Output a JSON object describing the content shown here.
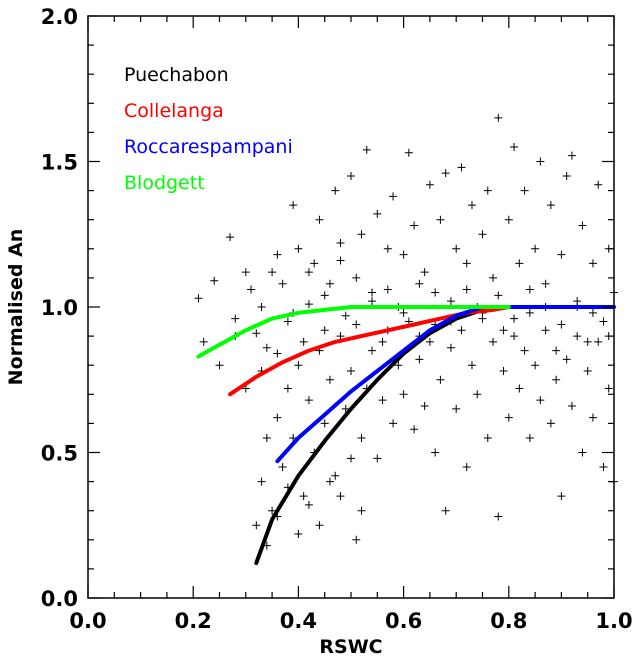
{
  "chart_data": {
    "type": "scatter",
    "xlabel": "RSWC",
    "ylabel": "Normalised An",
    "xlim": [
      0.0,
      1.0
    ],
    "ylim": [
      0.0,
      2.0
    ],
    "xticks": [
      "0.0",
      "0.2",
      "0.4",
      "0.6",
      "0.8",
      "1.0"
    ],
    "yticks": [
      "0.0",
      "0.5",
      "1.0",
      "1.5",
      "2.0"
    ],
    "grid": false,
    "legend_placement": "top-left",
    "scatter_points": [
      [
        0.21,
        1.03
      ],
      [
        0.24,
        1.09
      ],
      [
        0.27,
        1.24
      ],
      [
        0.28,
        0.96
      ],
      [
        0.3,
        1.12
      ],
      [
        0.31,
        1.06
      ],
      [
        0.32,
        0.91
      ],
      [
        0.33,
        1.0
      ],
      [
        0.34,
        0.86
      ],
      [
        0.35,
        1.12
      ],
      [
        0.36,
        1.18
      ],
      [
        0.37,
        1.08
      ],
      [
        0.38,
        0.95
      ],
      [
        0.39,
        1.35
      ],
      [
        0.4,
        1.2
      ],
      [
        0.41,
        0.88
      ],
      [
        0.42,
        1.01
      ],
      [
        0.43,
        1.15
      ],
      [
        0.44,
        1.3
      ],
      [
        0.45,
        0.92
      ],
      [
        0.46,
        1.08
      ],
      [
        0.47,
        1.4
      ],
      [
        0.48,
        1.22
      ],
      [
        0.49,
        0.97
      ],
      [
        0.5,
        1.45
      ],
      [
        0.51,
        1.1
      ],
      [
        0.52,
        1.25
      ],
      [
        0.53,
        1.54
      ],
      [
        0.54,
        1.05
      ],
      [
        0.55,
        1.32
      ],
      [
        0.56,
        0.88
      ],
      [
        0.57,
        1.2
      ],
      [
        0.58,
        1.38
      ],
      [
        0.59,
        1.0
      ],
      [
        0.6,
        1.18
      ],
      [
        0.61,
        1.53
      ],
      [
        0.62,
        1.28
      ],
      [
        0.63,
        0.9
      ],
      [
        0.64,
        1.12
      ],
      [
        0.65,
        1.42
      ],
      [
        0.66,
        1.05
      ],
      [
        0.67,
        1.3
      ],
      [
        0.68,
        1.46
      ],
      [
        0.69,
        0.95
      ],
      [
        0.7,
        1.2
      ],
      [
        0.71,
        1.48
      ],
      [
        0.72,
        1.15
      ],
      [
        0.73,
        1.35
      ],
      [
        0.74,
        1.0
      ],
      [
        0.75,
        1.25
      ],
      [
        0.76,
        1.4
      ],
      [
        0.77,
        1.1
      ],
      [
        0.78,
        1.65
      ],
      [
        0.79,
        0.92
      ],
      [
        0.8,
        1.3
      ],
      [
        0.81,
        1.55
      ],
      [
        0.82,
        1.15
      ],
      [
        0.83,
        1.4
      ],
      [
        0.84,
        0.98
      ],
      [
        0.85,
        1.2
      ],
      [
        0.86,
        1.5
      ],
      [
        0.87,
        1.08
      ],
      [
        0.88,
        1.35
      ],
      [
        0.89,
        0.85
      ],
      [
        0.9,
        1.18
      ],
      [
        0.91,
        1.45
      ],
      [
        0.92,
        1.52
      ],
      [
        0.93,
        1.0
      ],
      [
        0.94,
        1.28
      ],
      [
        0.95,
        0.88
      ],
      [
        0.96,
        1.15
      ],
      [
        0.97,
        1.42
      ],
      [
        0.98,
        0.95
      ],
      [
        0.99,
        1.2
      ],
      [
        1.0,
        1.05
      ],
      [
        0.32,
        0.25
      ],
      [
        0.33,
        0.4
      ],
      [
        0.34,
        0.55
      ],
      [
        0.35,
        0.3
      ],
      [
        0.36,
        0.62
      ],
      [
        0.37,
        0.45
      ],
      [
        0.38,
        0.72
      ],
      [
        0.39,
        0.55
      ],
      [
        0.4,
        0.8
      ],
      [
        0.41,
        0.35
      ],
      [
        0.42,
        0.68
      ],
      [
        0.43,
        0.5
      ],
      [
        0.44,
        0.85
      ],
      [
        0.45,
        0.6
      ],
      [
        0.46,
        0.75
      ],
      [
        0.47,
        0.42
      ],
      [
        0.48,
        0.9
      ],
      [
        0.49,
        0.65
      ],
      [
        0.5,
        0.78
      ],
      [
        0.51,
        0.2
      ],
      [
        0.52,
        0.55
      ],
      [
        0.53,
        0.72
      ],
      [
        0.54,
        0.85
      ],
      [
        0.55,
        0.48
      ],
      [
        0.56,
        0.68
      ],
      [
        0.57,
        0.92
      ],
      [
        0.58,
        0.6
      ],
      [
        0.59,
        0.8
      ],
      [
        0.6,
        0.7
      ],
      [
        0.61,
        0.95
      ],
      [
        0.62,
        0.58
      ],
      [
        0.63,
        0.82
      ],
      [
        0.64,
        0.66
      ],
      [
        0.65,
        0.88
      ],
      [
        0.66,
        0.5
      ],
      [
        0.67,
        0.75
      ],
      [
        0.68,
        0.3
      ],
      [
        0.69,
        0.86
      ],
      [
        0.7,
        0.65
      ],
      [
        0.71,
        0.92
      ],
      [
        0.72,
        0.45
      ],
      [
        0.73,
        0.8
      ],
      [
        0.74,
        0.7
      ],
      [
        0.75,
        0.96
      ],
      [
        0.76,
        0.55
      ],
      [
        0.77,
        0.88
      ],
      [
        0.78,
        0.28
      ],
      [
        0.79,
        0.78
      ],
      [
        0.8,
        0.62
      ],
      [
        0.81,
        0.9
      ],
      [
        0.82,
        0.72
      ],
      [
        0.83,
        0.85
      ],
      [
        0.84,
        0.55
      ],
      [
        0.85,
        0.8
      ],
      [
        0.86,
        0.68
      ],
      [
        0.87,
        0.92
      ],
      [
        0.88,
        0.6
      ],
      [
        0.89,
        0.75
      ],
      [
        0.9,
        0.35
      ],
      [
        0.91,
        0.82
      ],
      [
        0.92,
        0.66
      ],
      [
        0.93,
        0.9
      ],
      [
        0.94,
        0.5
      ],
      [
        0.95,
        0.78
      ],
      [
        0.96,
        0.62
      ],
      [
        0.97,
        0.88
      ],
      [
        0.98,
        0.45
      ],
      [
        0.99,
        0.72
      ],
      [
        1.0,
        0.4
      ],
      [
        0.22,
        0.88
      ],
      [
        0.25,
        0.8
      ],
      [
        0.28,
        0.9
      ],
      [
        0.3,
        0.72
      ],
      [
        0.33,
        0.78
      ],
      [
        0.36,
        0.84
      ],
      [
        0.39,
        0.98
      ],
      [
        0.42,
        1.12
      ],
      [
        0.45,
        1.04
      ],
      [
        0.48,
        1.16
      ],
      [
        0.51,
        0.94
      ],
      [
        0.54,
        1.02
      ],
      [
        0.57,
        1.06
      ],
      [
        0.6,
        0.98
      ],
      [
        0.63,
        1.08
      ],
      [
        0.66,
        0.94
      ],
      [
        0.69,
        1.02
      ],
      [
        0.72,
        1.06
      ],
      [
        0.75,
        0.98
      ],
      [
        0.78,
        1.04
      ],
      [
        0.81,
        0.96
      ],
      [
        0.84,
        1.06
      ],
      [
        0.87,
        1.0
      ],
      [
        0.9,
        0.94
      ],
      [
        0.93,
        1.02
      ],
      [
        0.96,
        0.98
      ],
      [
        0.99,
        0.9
      ],
      [
        0.34,
        0.18
      ],
      [
        0.36,
        0.28
      ],
      [
        0.38,
        0.38
      ],
      [
        0.4,
        0.22
      ],
      [
        0.42,
        0.32
      ],
      [
        0.44,
        0.25
      ],
      [
        0.46,
        0.4
      ],
      [
        0.48,
        0.35
      ],
      [
        0.5,
        0.48
      ],
      [
        0.52,
        0.3
      ]
    ],
    "series": [
      {
        "name": "Puechabon",
        "color": "#000000",
        "x": [
          0.32,
          0.35,
          0.4,
          0.45,
          0.5,
          0.55,
          0.6,
          0.65,
          0.7,
          0.75,
          0.8
        ],
        "y": [
          0.12,
          0.27,
          0.42,
          0.54,
          0.65,
          0.75,
          0.84,
          0.91,
          0.96,
          0.99,
          1.0
        ]
      },
      {
        "name": "Collelanga",
        "color": "#ff0000",
        "x": [
          0.27,
          0.32,
          0.37,
          0.42,
          0.47,
          0.52,
          0.57,
          0.62,
          0.67,
          0.72,
          0.77,
          0.8
        ],
        "y": [
          0.7,
          0.76,
          0.81,
          0.85,
          0.88,
          0.9,
          0.92,
          0.94,
          0.96,
          0.98,
          0.99,
          1.0
        ]
      },
      {
        "name": "Roccarespampani",
        "color": "#0000ff",
        "x": [
          0.36,
          0.4,
          0.45,
          0.5,
          0.55,
          0.6,
          0.65,
          0.7,
          0.75,
          0.8,
          0.85,
          0.9,
          0.95,
          1.0
        ],
        "y": [
          0.47,
          0.55,
          0.63,
          0.71,
          0.78,
          0.85,
          0.92,
          0.97,
          1.0,
          1.0,
          1.0,
          1.0,
          1.0,
          1.0
        ]
      },
      {
        "name": "Blodgett",
        "color": "#00ff00",
        "x": [
          0.21,
          0.25,
          0.3,
          0.35,
          0.4,
          0.45,
          0.5,
          0.55,
          0.6,
          0.65,
          0.7,
          0.75,
          0.8
        ],
        "y": [
          0.83,
          0.87,
          0.92,
          0.96,
          0.98,
          0.99,
          1.0,
          1.0,
          1.0,
          1.0,
          1.0,
          1.0,
          1.0
        ]
      }
    ]
  }
}
